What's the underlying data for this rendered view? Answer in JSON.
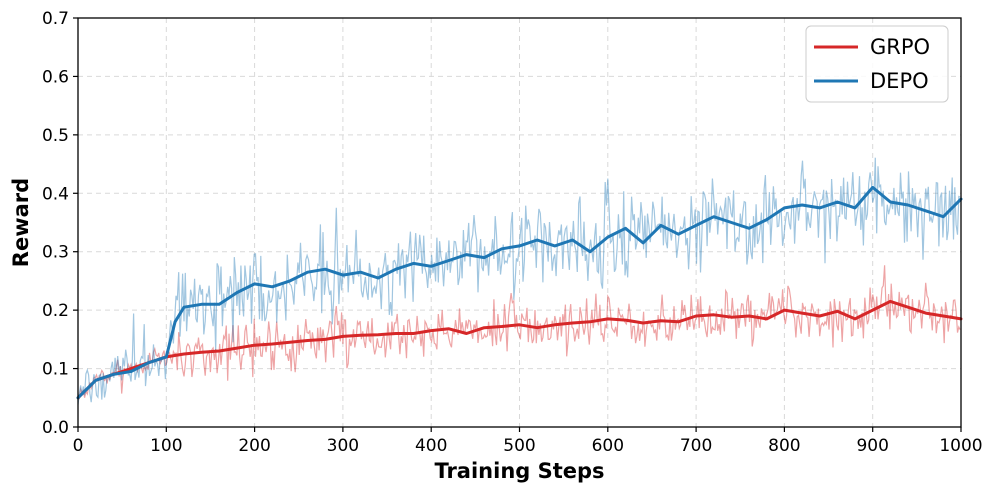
{
  "chart_data": {
    "type": "line",
    "title": "",
    "xlabel": "Training Steps",
    "ylabel": "Reward",
    "xlim": [
      0,
      1000
    ],
    "ylim": [
      0.0,
      0.7
    ],
    "x_ticks": [
      0,
      100,
      200,
      300,
      400,
      500,
      600,
      700,
      800,
      900,
      1000
    ],
    "y_ticks": [
      0.0,
      0.1,
      0.2,
      0.3,
      0.4,
      0.5,
      0.6,
      0.7
    ],
    "y_tick_labels": [
      "0.0",
      "0.1",
      "0.2",
      "0.3",
      "0.4",
      "0.5",
      "0.6",
      "0.7"
    ],
    "grid": true,
    "legend_position": "top-right",
    "series": [
      {
        "name": "GRPO",
        "color": "#d62728",
        "raw_noise_amplitude": 0.035,
        "smoothed": {
          "x": [
            0,
            20,
            40,
            60,
            80,
            100,
            120,
            140,
            160,
            180,
            200,
            220,
            240,
            260,
            280,
            300,
            320,
            340,
            360,
            380,
            400,
            420,
            440,
            460,
            480,
            500,
            520,
            540,
            560,
            580,
            600,
            620,
            640,
            660,
            680,
            700,
            720,
            740,
            760,
            780,
            800,
            820,
            840,
            860,
            880,
            900,
            920,
            940,
            960,
            980,
            1000
          ],
          "y": [
            0.05,
            0.08,
            0.09,
            0.1,
            0.11,
            0.12,
            0.125,
            0.128,
            0.13,
            0.135,
            0.14,
            0.142,
            0.145,
            0.148,
            0.15,
            0.155,
            0.157,
            0.158,
            0.16,
            0.16,
            0.165,
            0.168,
            0.16,
            0.17,
            0.172,
            0.175,
            0.17,
            0.175,
            0.178,
            0.18,
            0.185,
            0.183,
            0.178,
            0.182,
            0.18,
            0.19,
            0.192,
            0.188,
            0.19,
            0.185,
            0.2,
            0.195,
            0.19,
            0.198,
            0.185,
            0.2,
            0.215,
            0.205,
            0.195,
            0.19,
            0.185
          ]
        }
      },
      {
        "name": "DEPO",
        "color": "#1f77b4",
        "raw_noise_amplitude": 0.055,
        "smoothed": {
          "x": [
            0,
            20,
            40,
            60,
            80,
            100,
            110,
            120,
            140,
            160,
            180,
            200,
            220,
            240,
            260,
            280,
            300,
            320,
            340,
            360,
            380,
            400,
            420,
            440,
            460,
            480,
            500,
            520,
            540,
            560,
            580,
            600,
            620,
            640,
            660,
            680,
            700,
            720,
            740,
            760,
            780,
            800,
            820,
            840,
            860,
            880,
            900,
            920,
            940,
            960,
            980,
            1000
          ],
          "y": [
            0.05,
            0.08,
            0.09,
            0.095,
            0.11,
            0.12,
            0.18,
            0.205,
            0.21,
            0.21,
            0.23,
            0.245,
            0.24,
            0.25,
            0.265,
            0.27,
            0.26,
            0.265,
            0.255,
            0.27,
            0.28,
            0.275,
            0.285,
            0.295,
            0.29,
            0.305,
            0.31,
            0.32,
            0.31,
            0.32,
            0.3,
            0.325,
            0.34,
            0.315,
            0.345,
            0.33,
            0.345,
            0.36,
            0.35,
            0.34,
            0.355,
            0.375,
            0.38,
            0.375,
            0.385,
            0.375,
            0.41,
            0.385,
            0.38,
            0.37,
            0.36,
            0.39
          ]
        }
      }
    ]
  }
}
